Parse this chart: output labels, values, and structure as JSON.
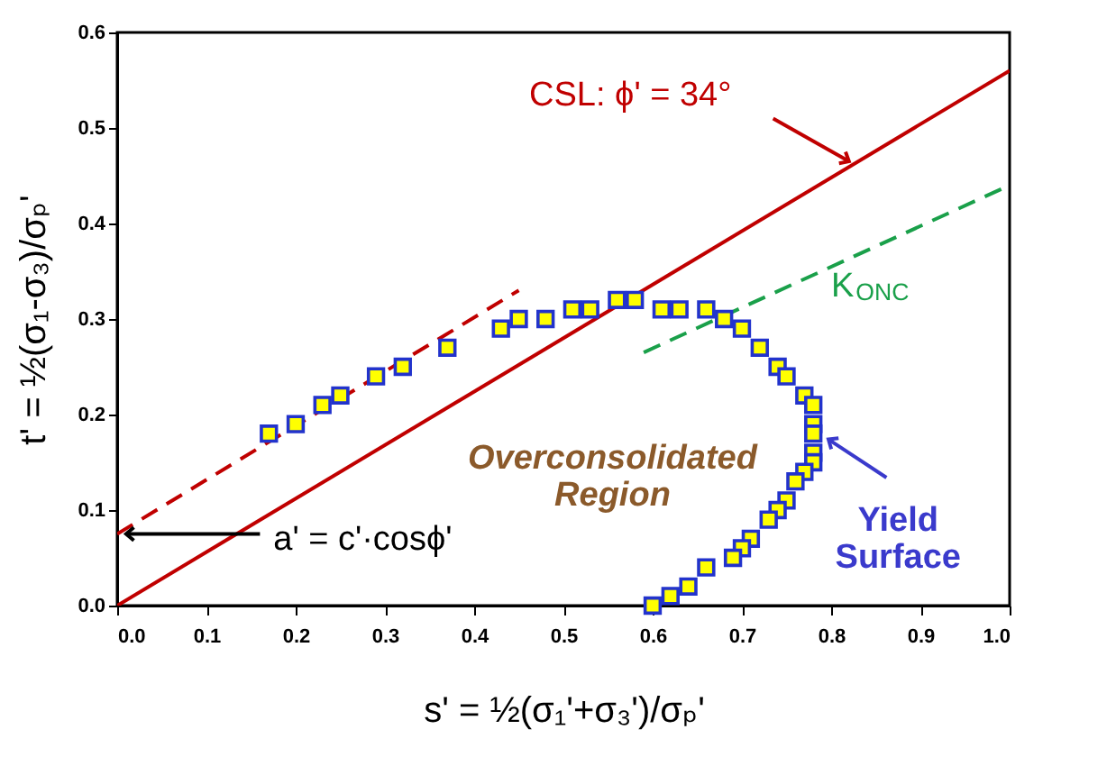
{
  "chart_data": {
    "type": "scatter",
    "xlabel": "s' = ½(σ₁'+σ₃')/σₚ'",
    "ylabel": "t' = ½(σ₁-σ₃)/σₚ'",
    "xlim": [
      0,
      1
    ],
    "ylim": [
      0,
      0.6
    ],
    "xticks": [
      {
        "value": 0,
        "label": "0.0"
      },
      0.1,
      0.2,
      0.3,
      0.4,
      0.5,
      0.6,
      0.7,
      0.8,
      0.9,
      {
        "value": 1,
        "label": "1.0"
      }
    ],
    "yticks": [
      {
        "value": 0,
        "label": "0.0"
      },
      0.1,
      0.2,
      0.3,
      0.4,
      0.5,
      0.6
    ],
    "series": [
      {
        "color": "#ffff00",
        "marker": "square",
        "x": [
          0.17,
          0.2,
          0.23,
          0.25,
          0.29,
          0.32,
          0.37,
          0.43,
          0.45,
          0.48,
          0.51,
          0.53,
          0.56,
          0.58,
          0.61,
          0.63,
          0.66,
          0.68,
          0.7,
          0.72,
          0.74,
          0.75,
          0.77,
          0.78,
          0.78,
          0.78,
          0.78,
          0.78,
          0.77,
          0.76,
          0.75,
          0.74,
          0.73,
          0.71,
          0.7,
          0.69,
          0.66,
          0.64,
          0.62,
          0.6
        ],
        "values": [
          0.18,
          0.19,
          0.21,
          0.22,
          0.24,
          0.25,
          0.27,
          0.29,
          0.3,
          0.3,
          0.31,
          0.31,
          0.32,
          0.32,
          0.31,
          0.31,
          0.31,
          0.3,
          0.29,
          0.27,
          0.25,
          0.24,
          0.22,
          0.21,
          0.19,
          0.18,
          0.16,
          0.15,
          0.14,
          0.13,
          0.11,
          0.1,
          0.09,
          0.07,
          0.06,
          0.05,
          0.04,
          0.02,
          0.01,
          0.0
        ]
      },
      {
        "type": "line",
        "color": "#c00000",
        "line_style": "solid",
        "x": [
          0,
          1
        ],
        "values": [
          0,
          0.56
        ]
      },
      {
        "type": "line",
        "color": "#c00000",
        "line_style": "dashed",
        "x": [
          0,
          0.45
        ],
        "values": [
          0.075,
          0.33
        ]
      },
      {
        "type": "line",
        "color": "#1aa04a",
        "line_style": "dashed",
        "x": [
          0.59,
          1
        ],
        "values": [
          0.265,
          0.44
        ]
      }
    ],
    "annotations": [
      {
        "text": "CSL:  ϕ' = 34°",
        "x": 0.82,
        "y": 0.465
      },
      {
        "text": "a' = c'·cosϕ'",
        "x": 0.01,
        "y": 0.075
      },
      "K$_{ONC}$",
      "Yield\nSurface",
      "Overconsolidated\nRegion"
    ]
  }
}
